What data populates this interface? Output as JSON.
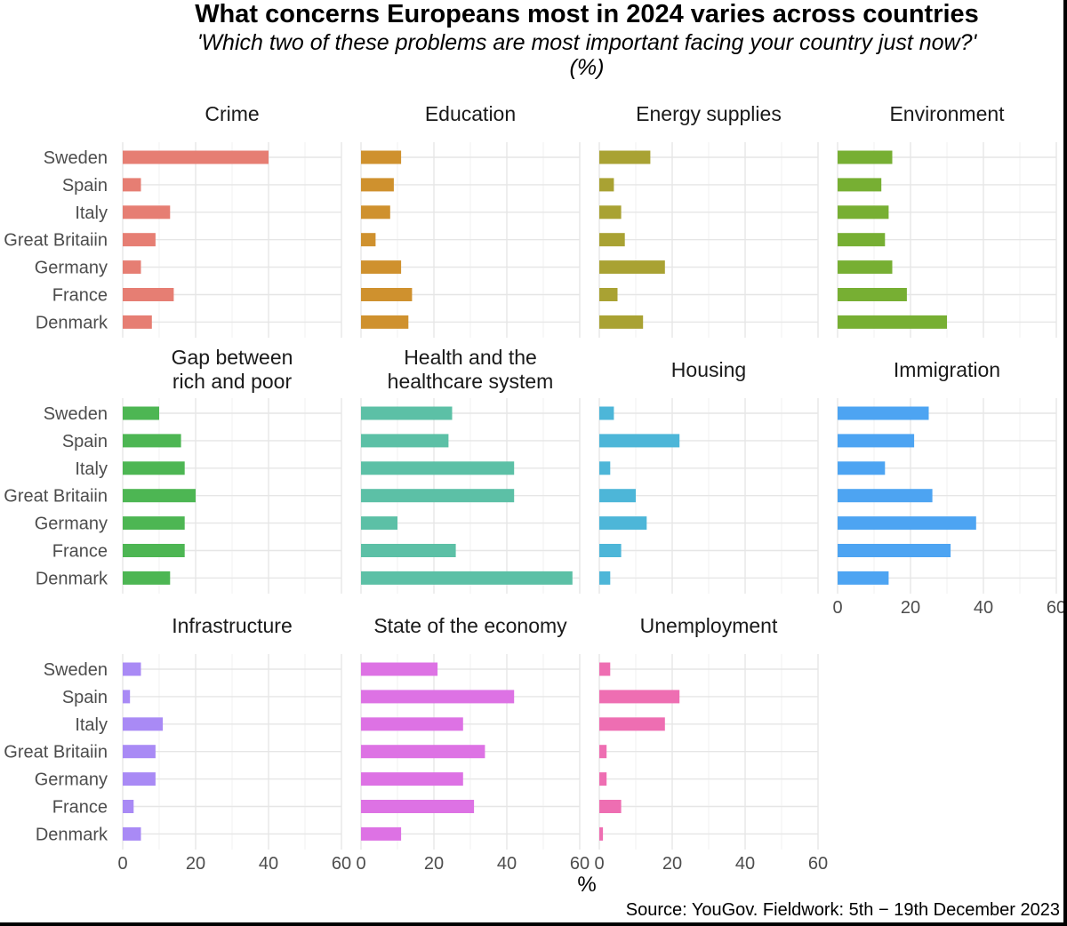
{
  "title": "What concerns Europeans most in 2024 varies across countries",
  "subtitle": "'Which two of these problems are most important facing your country just now?' (%)",
  "xlabel": "%",
  "source": "Source: YouGov. Fieldwork: 5th − 19th December 2023",
  "chart_data": {
    "type": "bar",
    "orientation": "horizontal",
    "facet_layout": {
      "columns": 4,
      "rows": 3
    },
    "categories": [
      "Sweden",
      "Spain",
      "Italy",
      "Great Britaiin",
      "Germany",
      "France",
      "Denmark"
    ],
    "xlim": [
      0,
      60
    ],
    "xticks": [
      0,
      20,
      40,
      60
    ],
    "grid": true,
    "facets": [
      {
        "name": "Crime",
        "color": "#E67E73",
        "values": [
          40,
          5,
          13,
          9,
          5,
          14,
          8
        ]
      },
      {
        "name": "Education",
        "color": "#CF912E",
        "values": [
          11,
          9,
          8,
          4,
          11,
          14,
          13
        ]
      },
      {
        "name": "Energy supplies",
        "color": "#A9A233",
        "values": [
          14,
          4,
          6,
          7,
          18,
          5,
          12
        ]
      },
      {
        "name": "Environment",
        "color": "#77AF33",
        "values": [
          15,
          12,
          14,
          13,
          15,
          19,
          30
        ]
      },
      {
        "name": "Gap between rich and poor",
        "color": "#4DB653",
        "values": [
          10,
          16,
          17,
          20,
          17,
          17,
          13
        ]
      },
      {
        "name": "Health and the healthcare system",
        "color": "#5CC0A6",
        "values": [
          25,
          24,
          42,
          42,
          10,
          26,
          58
        ]
      },
      {
        "name": "Housing",
        "color": "#4DB6D8",
        "values": [
          4,
          22,
          3,
          10,
          13,
          6,
          3
        ]
      },
      {
        "name": "Immigration",
        "color": "#4DA4F2",
        "values": [
          25,
          21,
          13,
          26,
          38,
          31,
          14
        ]
      },
      {
        "name": "Infrastructure",
        "color": "#A98AF5",
        "values": [
          5,
          2,
          11,
          9,
          9,
          3,
          5
        ]
      },
      {
        "name": "State of the economy",
        "color": "#DD72E4",
        "values": [
          21,
          42,
          28,
          34,
          28,
          31,
          11
        ]
      },
      {
        "name": "Unemployment",
        "color": "#EE6EB2",
        "values": [
          3,
          22,
          18,
          2,
          2,
          6,
          1
        ]
      }
    ]
  }
}
